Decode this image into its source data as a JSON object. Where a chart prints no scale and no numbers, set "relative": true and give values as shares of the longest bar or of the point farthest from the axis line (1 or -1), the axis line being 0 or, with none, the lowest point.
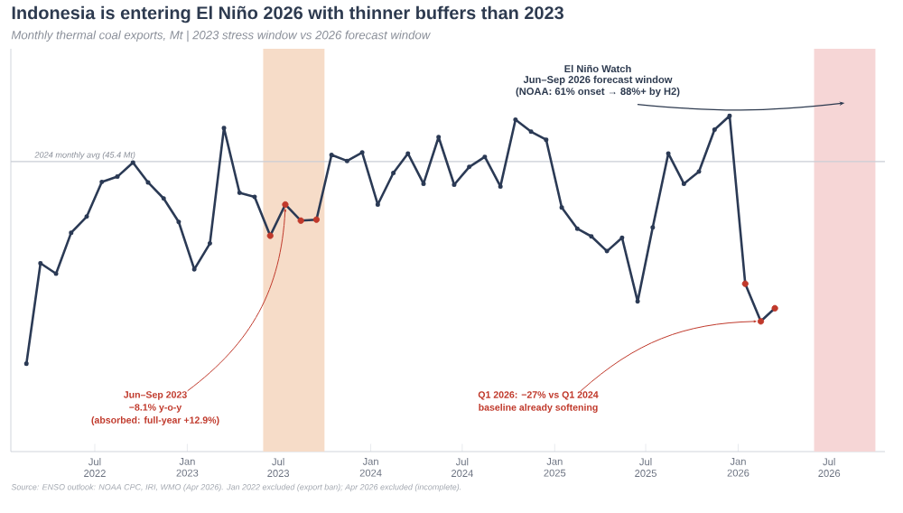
{
  "chart_data": {
    "type": "line",
    "title": "Indonesia is entering El Niño 2026 with thinner buffers than 2023",
    "subtitle": "Monthly thermal coal exports, Mt  |  2023 stress window vs 2026 forecast window",
    "relative": true,
    "tick_labels": "x",
    "xlim": [
      "2022-01-15",
      "2026-10-20"
    ],
    "xticks": [
      {
        "value": "2022-07-01",
        "label": "Jul 2022"
      },
      {
        "value": "2023-01-01",
        "label": "Jan 2023"
      },
      {
        "value": "2023-07-01",
        "label": "Jul 2023"
      },
      {
        "value": "2024-01-01",
        "label": "Jan 2024"
      },
      {
        "value": "2024-07-01",
        "label": "Jul 2024"
      },
      {
        "value": "2025-01-01",
        "label": "Jan 2025"
      },
      {
        "value": "2025-07-01",
        "label": "Jul 2025"
      },
      {
        "value": "2026-01-01",
        "label": "Jan 2026"
      },
      {
        "value": "2026-07-01",
        "label": "Jul 2026"
      }
    ],
    "series": [
      {
        "color": "#2b3a55",
        "marker": "circle",
        "x": [
          "2022-02-15",
          "2022-03-15",
          "2022-04-15",
          "2022-05-15",
          "2022-06-15",
          "2022-07-15",
          "2022-08-15",
          "2022-09-15",
          "2022-10-15",
          "2022-11-15",
          "2022-12-15",
          "2023-01-15",
          "2023-02-15",
          "2023-03-15",
          "2023-04-15",
          "2023-05-15",
          "2023-06-15",
          "2023-07-15",
          "2023-08-15",
          "2023-09-15",
          "2023-10-15",
          "2023-11-15",
          "2023-12-15",
          "2024-01-15",
          "2024-02-15",
          "2024-03-15",
          "2024-04-15",
          "2024-05-15",
          "2024-06-15",
          "2024-07-15",
          "2024-08-15",
          "2024-09-15",
          "2024-10-15",
          "2024-11-15",
          "2024-12-15",
          "2025-01-15",
          "2025-02-15",
          "2025-03-15",
          "2025-04-15",
          "2025-05-15",
          "2025-06-15",
          "2025-07-15",
          "2025-08-15",
          "2025-09-15",
          "2025-10-15",
          "2025-11-15",
          "2025-12-15",
          "2026-01-15",
          "2026-02-15",
          "2026-03-15"
        ],
        "values": [
          0.262,
          0.561,
          0.53,
          0.652,
          0.7,
          0.803,
          0.819,
          0.861,
          0.802,
          0.754,
          0.684,
          0.543,
          0.62,
          0.964,
          0.771,
          0.759,
          0.643,
          0.736,
          0.688,
          0.691,
          0.884,
          0.866,
          0.891,
          0.736,
          0.83,
          0.888,
          0.798,
          0.937,
          0.795,
          0.848,
          0.878,
          0.79,
          0.989,
          0.953,
          0.929,
          0.727,
          0.664,
          0.641,
          0.597,
          0.637,
          0.447,
          0.668,
          0.888,
          0.798,
          0.834,
          0.959,
          1,
          0.5,
          0.388,
          0.427
        ]
      },
      {
        "type": "scatter",
        "color": "#c0392b",
        "marker": "circle",
        "x": [
          "2023-06-15",
          "2023-07-15",
          "2023-08-15",
          "2023-09-15",
          "2026-01-15",
          "2026-02-15",
          "2026-03-15"
        ],
        "values": [
          0.643,
          0.736,
          0.688,
          0.691,
          0.5,
          0.388,
          0.427
        ]
      }
    ],
    "bands": [
      {
        "axis": "x",
        "from": "2023-06-01",
        "to": "2023-10-01",
        "color": "#f6dcc8"
      },
      {
        "axis": "x",
        "from": "2026-06-01",
        "to": "2026-10-01",
        "color": "#f6d6d6"
      }
    ],
    "ref_lines": [
      {
        "axis": "y",
        "value": 0.864,
        "label": "2024 monthly avg (45.4 Mt)",
        "color": "#c9ced6"
      }
    ],
    "annotations": [
      {
        "text": "Jun–Sep 2023",
        "x": "2023-07-15",
        "y": 0.736
      },
      "−8.1% y-o-y",
      "(absorbed: full-year +12.9%)",
      "El Niño Watch",
      "Jun–Sep 2026 forecast window",
      "(NOAA: 61% onset → 88%+ by H2)",
      {
        "text": "Q1 2026: −27% vs Q1 2024",
        "x": "2026-02-15",
        "y": 0.388
      },
      "baseline already softening",
      "Source: ENSO outlook: NOAA CPC, IRI, WMO (Apr 2026). Jan 2022 excluded (export ban); Apr 2026 excluded (incomplete)."
    ]
  }
}
